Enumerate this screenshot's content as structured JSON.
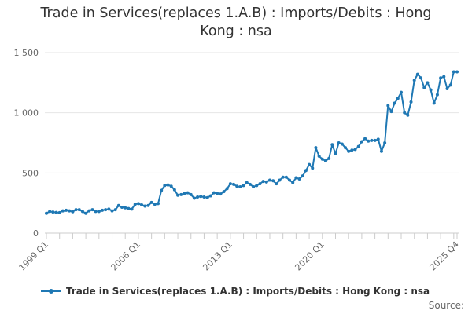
{
  "chart_data": {
    "type": "line",
    "title": "Trade in Services(replaces 1.A.B) : Imports/Debits : Hong Kong : nsa",
    "title_lines": [
      "Trade in Services(replaces 1.A.B) : Imports/Debits : Hong",
      "Kong : nsa"
    ],
    "x_tick_labels": [
      "1999 Q1",
      "2006 Q1",
      "2013 Q1",
      "2020 Q1",
      "2025 Q4"
    ],
    "y_tick_labels": [
      "0",
      "500",
      "1 000",
      "1 500"
    ],
    "ylim": [
      0,
      1500
    ],
    "grid": "horizontal",
    "legend_position": "bottom",
    "start_period": "1999 Q1",
    "end_period": "2025 Q4",
    "series": [
      {
        "name": "Trade in Services(replaces 1.A.B) : Imports/Debits : Hong Kong : nsa",
        "color": "#1f78b4",
        "values": [
          165,
          180,
          175,
          172,
          170,
          185,
          190,
          185,
          178,
          195,
          195,
          180,
          165,
          185,
          195,
          180,
          180,
          190,
          195,
          200,
          185,
          195,
          230,
          215,
          210,
          205,
          200,
          240,
          245,
          235,
          225,
          230,
          255,
          240,
          245,
          355,
          395,
          400,
          390,
          360,
          315,
          320,
          330,
          335,
          320,
          290,
          300,
          305,
          300,
          295,
          310,
          335,
          330,
          325,
          345,
          370,
          410,
          405,
          390,
          385,
          395,
          420,
          405,
          385,
          395,
          410,
          430,
          425,
          440,
          435,
          410,
          440,
          465,
          465,
          440,
          420,
          460,
          450,
          475,
          520,
          570,
          540,
          710,
          640,
          615,
          600,
          620,
          735,
          660,
          750,
          740,
          710,
          680,
          690,
          695,
          720,
          760,
          785,
          765,
          770,
          770,
          780,
          680,
          750,
          1060,
          1010,
          1080,
          1120,
          1170,
          1000,
          980,
          1090,
          1270,
          1320,
          1290,
          1210,
          1250,
          1190,
          1080,
          1150,
          1290,
          1300,
          1200,
          1230,
          1340,
          1340
        ]
      }
    ]
  },
  "legend": {
    "label": "Trade in Services(replaces 1.A.B) : Imports/Debits : Hong Kong : nsa"
  },
  "source": {
    "label": "Source:"
  }
}
